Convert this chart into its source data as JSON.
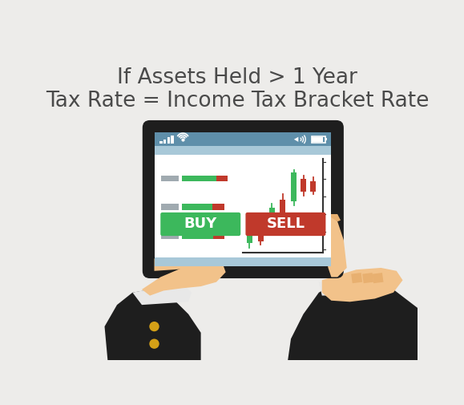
{
  "background_color": "#edecea",
  "title_line1": "If Assets Held > 1 Year",
  "title_line2": "Tax Rate = Income Tax Bracket Rate",
  "title_color": "#4a4a4a",
  "title_fontsize": 19,
  "tablet_body_color": "#1e1e1e",
  "screen_color": "#ffffff",
  "status_bar_color": "#5f8faa",
  "sub_bar_color": "#a8c8d8",
  "bottom_bar_color": "#a8c8d8",
  "buy_color": "#3cb85c",
  "sell_color": "#c0392b",
  "bar_green": "#3cb85c",
  "bar_red": "#c0392b",
  "bar_gray": "#a0aab0",
  "candle_green": "#3cb85c",
  "candle_red": "#c0392b",
  "chart_axis_color": "#333333",
  "hand_skin": "#f2c28a",
  "hand_skin_dark": "#e8b070",
  "sleeve_color": "#1e1e1e",
  "cuff_color": "#e8e8e8",
  "gold_color": "#d4a017"
}
